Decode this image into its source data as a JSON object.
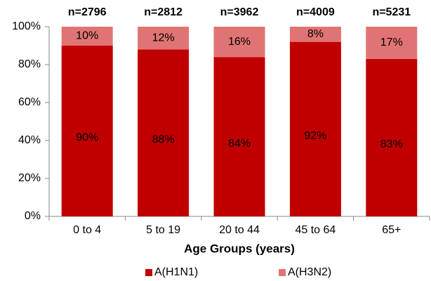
{
  "chart_data": {
    "type": "stacked_bar",
    "xlabel": "Age Groups (years)",
    "categories": [
      "0 to 4",
      "5 to 19",
      "20 to 44",
      "45 to 64",
      "65+"
    ],
    "top_labels": [
      "n=2796",
      "n=2812",
      "n=3962",
      "n=4009",
      "n=5231"
    ],
    "series": [
      {
        "name": "A(H1N1)",
        "color": "#c00000",
        "values": [
          90,
          88,
          84,
          92,
          83
        ],
        "value_labels": [
          "90%",
          "88%",
          "84%",
          "92%",
          "83%"
        ]
      },
      {
        "name": "A(H3N2)",
        "color": "#e07474",
        "values": [
          10,
          12,
          16,
          8,
          17
        ],
        "value_labels": [
          "10%",
          "12%",
          "16%",
          "8%",
          "17%"
        ]
      }
    ],
    "ylim": [
      0,
      100
    ],
    "yticks": [
      {
        "value": 0,
        "label": "0%"
      },
      {
        "value": 20,
        "label": "20%"
      },
      {
        "value": 40,
        "label": "40%"
      },
      {
        "value": 60,
        "label": "60%"
      },
      {
        "value": 80,
        "label": "80%"
      },
      {
        "value": 100,
        "label": "100%"
      }
    ],
    "legend": "bottom"
  }
}
